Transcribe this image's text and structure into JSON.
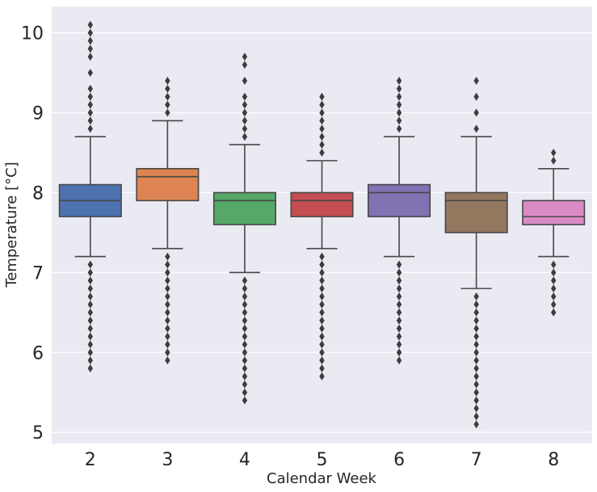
{
  "chart_data": {
    "type": "box",
    "xlabel": "Calendar Week",
    "ylabel": "Temperature [°C]",
    "ylim": [
      4.86,
      10.33
    ],
    "yticks": [
      5,
      6,
      7,
      8,
      9,
      10
    ],
    "grid": true,
    "categories": [
      "2",
      "3",
      "4",
      "5",
      "6",
      "7",
      "8"
    ],
    "colors": [
      "#4c72b0",
      "#dd8452",
      "#55a868",
      "#c44e52",
      "#8172b3",
      "#937860",
      "#da8bc3"
    ],
    "boxes": [
      {
        "category": "2",
        "whisker_low": 7.2,
        "q1": 7.7,
        "median": 7.9,
        "q3": 8.1,
        "whisker_high": 8.7,
        "outliers": [
          5.8,
          5.9,
          6.0,
          6.1,
          6.2,
          6.3,
          6.4,
          6.5,
          6.6,
          6.7,
          6.8,
          6.9,
          7.0,
          7.1,
          8.8,
          8.9,
          9.0,
          9.1,
          9.2,
          9.3,
          9.5,
          9.7,
          9.8,
          9.9,
          10.0,
          10.1
        ]
      },
      {
        "category": "3",
        "whisker_low": 7.3,
        "q1": 7.9,
        "median": 8.2,
        "q3": 8.3,
        "whisker_high": 8.9,
        "outliers": [
          5.9,
          6.0,
          6.1,
          6.2,
          6.3,
          6.4,
          6.5,
          6.6,
          6.7,
          6.8,
          6.9,
          7.0,
          7.1,
          7.2,
          9.0,
          9.1,
          9.2,
          9.3,
          9.4
        ]
      },
      {
        "category": "4",
        "whisker_low": 7.0,
        "q1": 7.6,
        "median": 7.9,
        "q3": 8.0,
        "whisker_high": 8.6,
        "outliers": [
          5.4,
          5.5,
          5.6,
          5.7,
          5.8,
          5.9,
          6.0,
          6.1,
          6.2,
          6.3,
          6.4,
          6.5,
          6.6,
          6.7,
          6.8,
          6.9,
          8.7,
          8.8,
          8.9,
          9.0,
          9.1,
          9.2,
          9.4,
          9.6,
          9.7
        ]
      },
      {
        "category": "5",
        "whisker_low": 7.3,
        "q1": 7.7,
        "median": 7.9,
        "q3": 8.0,
        "whisker_high": 8.4,
        "outliers": [
          5.7,
          5.8,
          5.9,
          6.0,
          6.1,
          6.2,
          6.3,
          6.4,
          6.5,
          6.6,
          6.7,
          6.8,
          6.9,
          7.0,
          7.1,
          7.2,
          8.5,
          8.6,
          8.7,
          8.8,
          8.9,
          9.0,
          9.1,
          9.2
        ]
      },
      {
        "category": "6",
        "whisker_low": 7.2,
        "q1": 7.7,
        "median": 8.0,
        "q3": 8.1,
        "whisker_high": 8.7,
        "outliers": [
          5.9,
          6.0,
          6.1,
          6.2,
          6.3,
          6.4,
          6.5,
          6.6,
          6.7,
          6.8,
          6.9,
          7.0,
          7.1,
          8.8,
          8.9,
          9.0,
          9.1,
          9.2,
          9.3,
          9.4
        ]
      },
      {
        "category": "7",
        "whisker_low": 6.8,
        "q1": 7.5,
        "median": 7.9,
        "q3": 8.0,
        "whisker_high": 8.7,
        "outliers": [
          5.1,
          5.2,
          5.3,
          5.4,
          5.5,
          5.6,
          5.7,
          5.8,
          5.9,
          6.0,
          6.1,
          6.2,
          6.3,
          6.4,
          6.5,
          6.6,
          6.7,
          8.8,
          9.0,
          9.2,
          9.4
        ]
      },
      {
        "category": "8",
        "whisker_low": 7.2,
        "q1": 7.6,
        "median": 7.7,
        "q3": 7.9,
        "whisker_high": 8.3,
        "outliers": [
          6.5,
          6.6,
          6.7,
          6.8,
          6.9,
          7.0,
          7.1,
          8.4,
          8.5
        ]
      }
    ]
  }
}
